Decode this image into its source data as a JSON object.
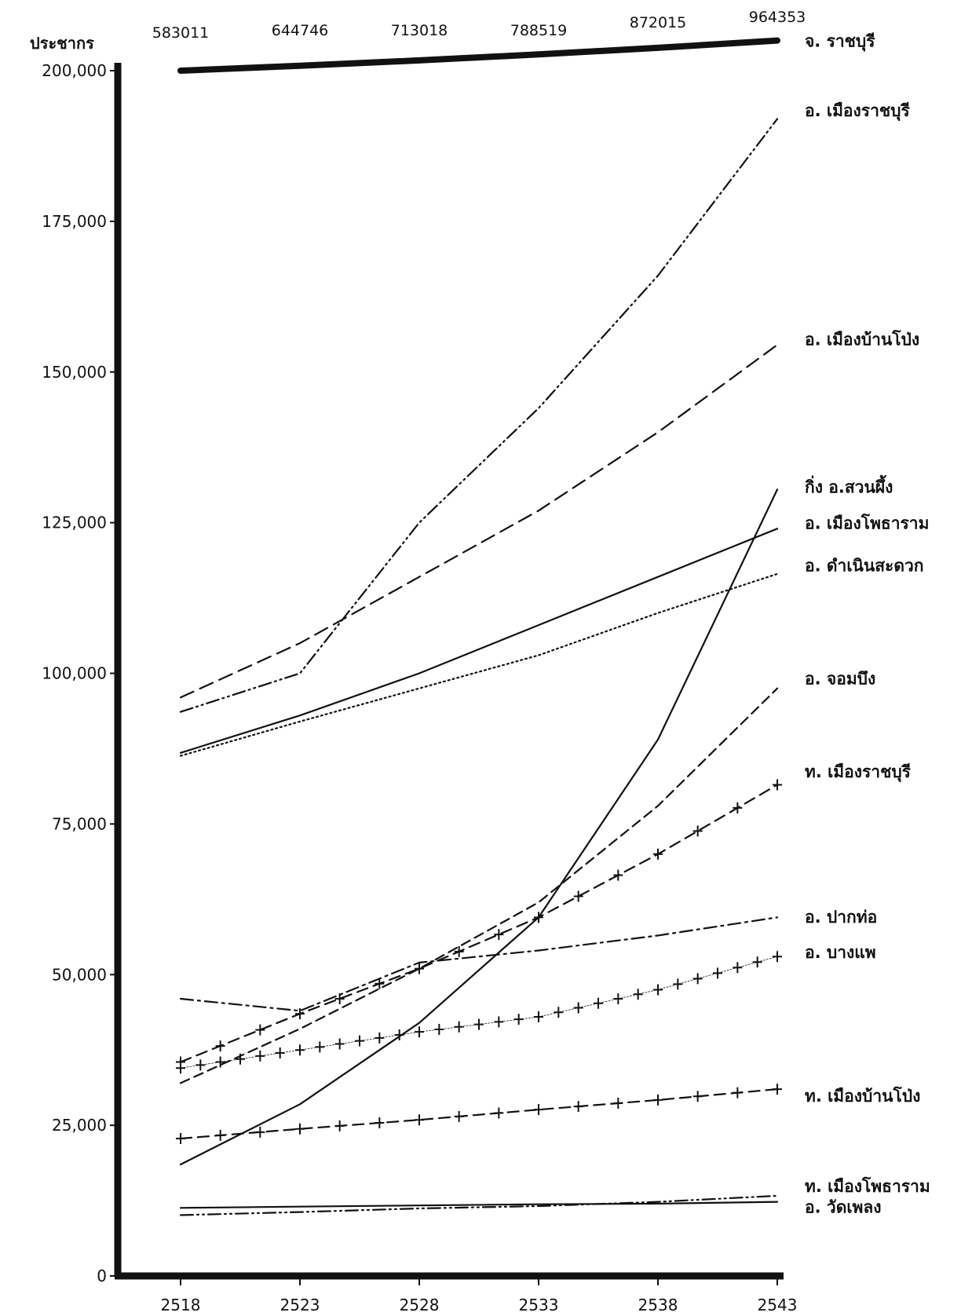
{
  "chart_data": {
    "type": "line",
    "ylabel": "ประชากร",
    "xlabel": "",
    "ylim": [
      0,
      200000
    ],
    "yticks": [
      0,
      25000,
      50000,
      75000,
      100000,
      125000,
      150000,
      175000,
      200000
    ],
    "ytick_labels": [
      "0",
      "25,000",
      "50,000",
      "75,000",
      "100,000",
      "125,000",
      "150,000",
      "175,000",
      "200,000"
    ],
    "x": [
      2518,
      2523,
      2528,
      2533,
      2538,
      2543
    ],
    "xtick_labels": [
      "2518",
      "2523",
      "2528",
      "2533",
      "2538",
      "2543"
    ],
    "province_totals": [
      "583011",
      "644746",
      "713018",
      "788519",
      "872015",
      "964353"
    ],
    "series": [
      {
        "name": "จ. ราชบุรี",
        "style": "thick",
        "values": [
          583011,
          644746,
          713018,
          788519,
          872015,
          964353
        ]
      },
      {
        "name": "อ. เมืองราชบุรี",
        "style": "dashdotdot",
        "values": [
          93600,
          100000,
          125000,
          144000,
          166000,
          192000
        ]
      },
      {
        "name": "อ. เมืองบ้านโป่ง",
        "style": "longdash",
        "values": [
          96000,
          105000,
          116000,
          127000,
          140000,
          154500
        ]
      },
      {
        "name": "กิ่ง อ.สวนผึ้ง",
        "style": "solid",
        "values": [
          18500,
          28500,
          42000,
          59500,
          89000,
          130500
        ]
      },
      {
        "name": "อ. เมืองโพธาราม",
        "style": "solid",
        "values": [
          86800,
          93000,
          100000,
          108000,
          116000,
          124000
        ]
      },
      {
        "name": "อ. ดำเนินสะดวก",
        "style": "dotted",
        "values": [
          86300,
          92000,
          97500,
          103000,
          110000,
          116500
        ]
      },
      {
        "name": "อ. จอมบึง",
        "style": "dashed",
        "values": [
          32000,
          41000,
          51000,
          62000,
          78000,
          97500
        ]
      },
      {
        "name": "ท. เมืองราชบุรี",
        "style": "dashcross",
        "values": [
          35500,
          43500,
          51000,
          59500,
          70000,
          81500
        ]
      },
      {
        "name": "อ. ปากท่อ",
        "style": "dashdot",
        "values": [
          46000,
          44000,
          52000,
          54000,
          56500,
          59500
        ]
      },
      {
        "name": "อ. บางแพ",
        "style": "crosses",
        "values": [
          34500,
          37500,
          40500,
          43000,
          47500,
          53000
        ]
      },
      {
        "name": "ท. เมืองบ้านโป่ง",
        "style": "dashcross",
        "values": [
          22800,
          24400,
          25900,
          27600,
          29200,
          31000
        ]
      },
      {
        "name": "ท. เมืองโพธาราม",
        "style": "dashdotdot",
        "values": [
          10100,
          10600,
          11200,
          11600,
          12300,
          13300
        ]
      },
      {
        "name": "อ. วัดเพลง",
        "style": "solid",
        "values": [
          11300,
          11500,
          11700,
          11900,
          12000,
          12300
        ]
      }
    ],
    "label_values": {
      "จ. ราชบุรี": 205000,
      "อ. เมืองราชบุรี": 193500,
      "อ. เมืองบ้านโป่ง": 155500,
      "กิ่ง อ.สวนผึ้ง": 131000,
      "อ. เมืองโพธาราม": 125000,
      "อ. ดำเนินสะดวก": 118000,
      "อ. จอมบึง": 99200,
      "ท. เมืองราชบุรี": 83800,
      "อ. ปากท่อ": 59700,
      "อ. บางแพ": 53800,
      "ท. เมืองบ้านโป่ง": 30000,
      "ท. เมืองโพธาราม": 15000,
      "อ. วัดเพลง": 11500
    },
    "grid": false,
    "legend": "right"
  }
}
